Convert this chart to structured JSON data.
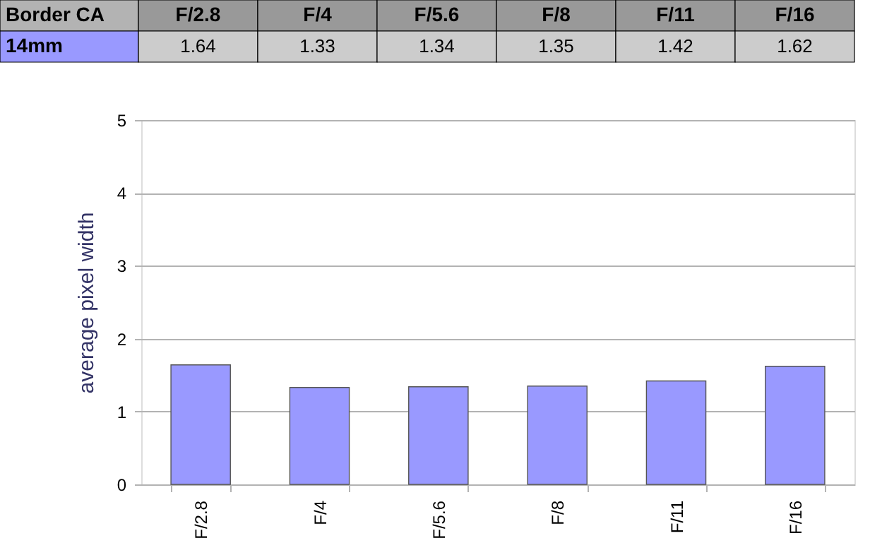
{
  "chart_data": {
    "type": "bar",
    "title": "Border CA",
    "categories": [
      "F/2.8",
      "F/4",
      "F/5.6",
      "F/8",
      "F/11",
      "F/16"
    ],
    "series": [
      {
        "name": "14mm",
        "color": "#9999ff",
        "values": [
          1.64,
          1.33,
          1.34,
          1.35,
          1.42,
          1.62
        ]
      }
    ],
    "ylabel": "average pixel width",
    "ylim": [
      0,
      5
    ],
    "yticks": [
      0,
      1,
      2,
      3,
      4,
      5
    ],
    "grid": "y",
    "data_labels": true
  }
}
